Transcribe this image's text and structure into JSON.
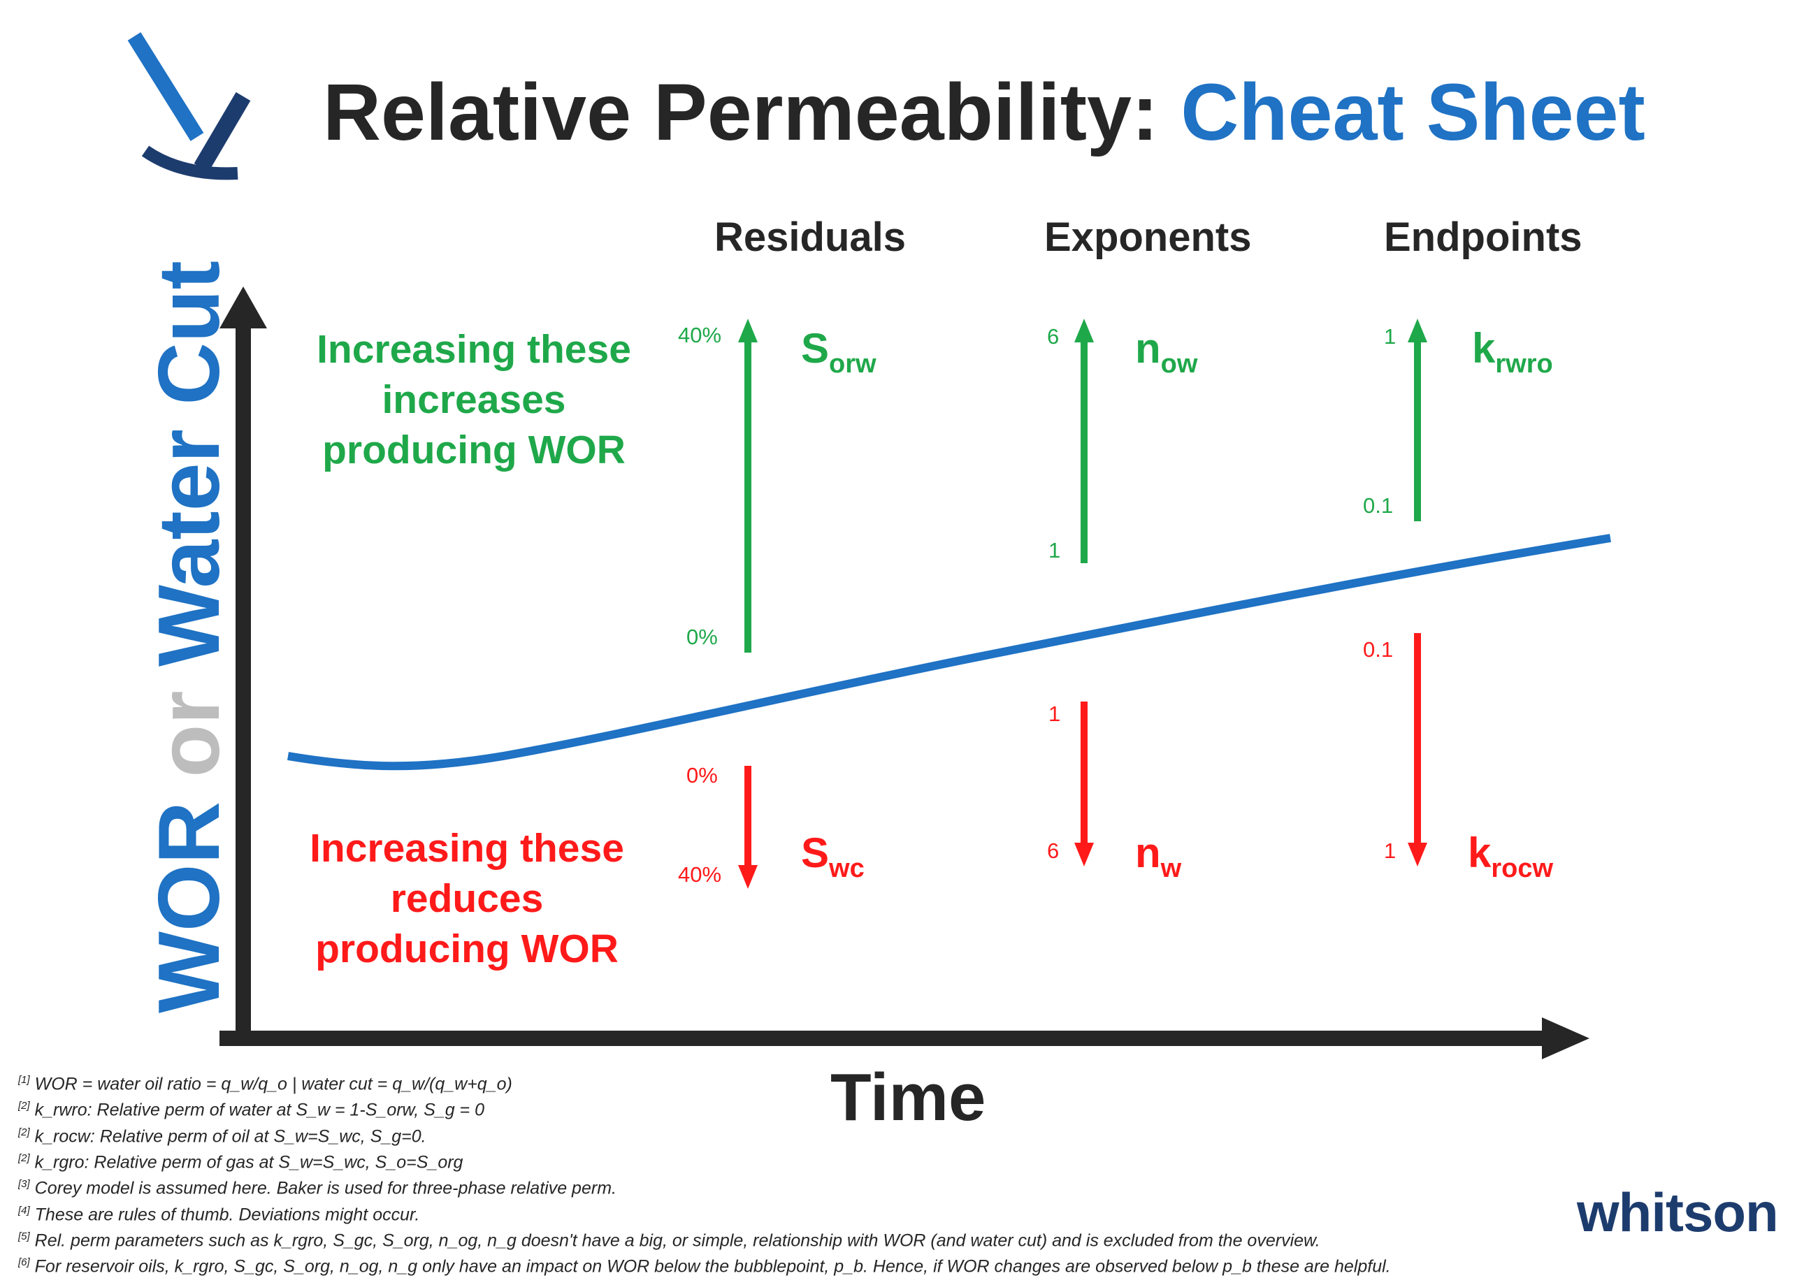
{
  "title": {
    "main": "Relative Permeability: ",
    "highlight": "Cheat Sheet"
  },
  "columns": {
    "residuals": "Residuals",
    "exponents": "Exponents",
    "endpoints": "Endpoints"
  },
  "axes": {
    "y_label_part1": "WOR",
    "y_label_or": "or",
    "y_label_part2": "Water Cut",
    "x_label": "Time"
  },
  "statements": {
    "increase": [
      "Increasing these",
      "increases",
      "producing WOR"
    ],
    "reduce": [
      "Increasing these",
      "reduces",
      "producing WOR"
    ]
  },
  "residuals": {
    "up": {
      "top": "40%",
      "bottom": "0%",
      "param": "S",
      "sub": "orw"
    },
    "down": {
      "top": "0%",
      "bottom": "40%",
      "param": "S",
      "sub": "wc"
    }
  },
  "exponents": {
    "up": {
      "top": "6",
      "bottom": "1",
      "param": "n",
      "sub": "ow"
    },
    "down": {
      "top": "1",
      "bottom": "6",
      "param": "n",
      "sub": "w"
    }
  },
  "endpoints": {
    "up": {
      "top": "1",
      "bottom": "0.1",
      "param": "k",
      "sub": "rwro"
    },
    "down": {
      "top": "0.1",
      "bottom": "1",
      "param": "k",
      "sub": "rocw"
    }
  },
  "notes": [
    {
      "ref": "[1]",
      "text": "WOR = water oil ratio = q_w/q_o | water cut = q_w/(q_w+q_o)"
    },
    {
      "ref": "[2]",
      "text": "k_rwro: Relative perm of water at S_w = 1-S_orw, S_g = 0"
    },
    {
      "ref": "[2]",
      "text": "k_rocw: Relative perm of oil at S_w=S_wc, S_g=0."
    },
    {
      "ref": "[2]",
      "text": "k_rgro: Relative perm of gas at S_w=S_wc, S_o=S_org"
    },
    {
      "ref": "[3]",
      "text": "Corey model is assumed here. Baker is used for three-phase relative perm."
    },
    {
      "ref": "[4]",
      "text": "These are rules of thumb. Deviations might occur."
    },
    {
      "ref": "[5]",
      "text": "Rel. perm parameters such as k_rgro, S_gc, S_org, n_og, n_g doesn't have a big, or simple, relationship with WOR (and water cut) and is excluded from the overview."
    },
    {
      "ref": "[6]",
      "text": "For reservoir oils, k_rgro, S_gc, S_org, n_og, n_g only have an impact on WOR below the bubblepoint, p_b. Hence, if WOR changes are observed below p_b these are helpful."
    }
  ],
  "brand": "whitson",
  "colors": {
    "green": "#1fa84a",
    "red": "#ff1a1a",
    "blue": "#1f72c4",
    "dark": "#262626",
    "navy": "#1d3c6e"
  }
}
